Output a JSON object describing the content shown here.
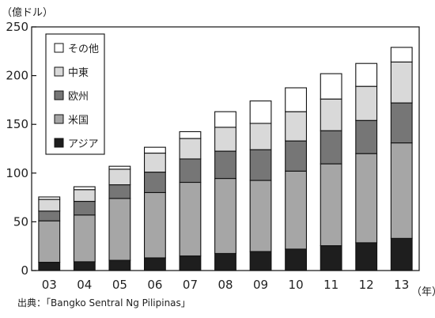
{
  "chart_data": {
    "type": "bar",
    "stacked": true,
    "title": "",
    "ylabel": "（億ドル）",
    "xlabel": "（年）",
    "categories": [
      "03",
      "04",
      "05",
      "06",
      "07",
      "08",
      "09",
      "10",
      "11",
      "12",
      "13"
    ],
    "ylim": [
      0,
      250
    ],
    "yticks": [
      0,
      50,
      100,
      150,
      200,
      250
    ],
    "grid": false,
    "legend_position": "top-left",
    "series": [
      {
        "name": "アジア",
        "color": "#1e1e1e",
        "values": [
          8.5,
          9,
          10.5,
          13,
          15,
          17.5,
          19.5,
          22,
          25.5,
          28.5,
          33
        ]
      },
      {
        "name": "米国",
        "color": "#a6a6a6",
        "values": [
          42.5,
          48,
          63.5,
          67,
          75.5,
          77,
          73,
          80,
          84,
          91.5,
          98
        ]
      },
      {
        "name": "欧州",
        "color": "#767676",
        "values": [
          10,
          14,
          14,
          21,
          24,
          28,
          31.5,
          31,
          34,
          34,
          41
        ]
      },
      {
        "name": "中東",
        "color": "#d9d9d9",
        "values": [
          12,
          12,
          16,
          19.5,
          21,
          24.5,
          27,
          30,
          32.5,
          35,
          42
        ]
      },
      {
        "name": "その他",
        "color": "#ffffff",
        "values": [
          2.5,
          3,
          3,
          6,
          7,
          16,
          23,
          24.5,
          26,
          23.5,
          15
        ]
      }
    ]
  },
  "source": "出典：「Bangko Sentral Ng Pilipinas」"
}
